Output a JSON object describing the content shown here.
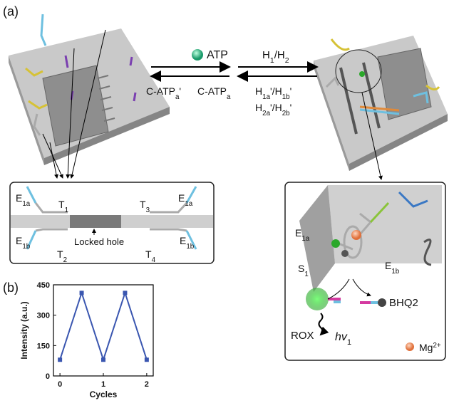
{
  "panel_a": {
    "label": "(a)",
    "labels": [
      {
        "parts": [
          "ATP"
        ]
      },
      {
        "parts": [
          "C-ATP",
          {
            "sub": "a"
          },
          "'"
        ]
      },
      {
        "parts": [
          "C-ATP",
          {
            "sub": "a"
          }
        ]
      },
      {
        "parts": [
          "H",
          {
            "sub": "1"
          },
          "/H",
          {
            "sub": "2"
          }
        ]
      },
      {
        "parts": [
          "H",
          {
            "sub": "1a"
          },
          "'/H",
          {
            "sub": "1b"
          },
          "'"
        ]
      },
      {
        "parts": [
          "H",
          {
            "sub": "2a"
          },
          "'/H",
          {
            "sub": "2b"
          },
          "'"
        ]
      },
      {
        "parts": [
          "E",
          {
            "sub": "1a"
          }
        ]
      },
      {
        "parts": [
          "T",
          {
            "sub": "1"
          }
        ]
      },
      {
        "parts": [
          "T",
          {
            "sub": "3"
          }
        ]
      },
      {
        "parts": [
          "E",
          {
            "sub": "1a"
          }
        ]
      },
      {
        "parts": [
          "E",
          {
            "sub": "1b"
          }
        ]
      },
      {
        "parts": [
          "T",
          {
            "sub": "2"
          }
        ]
      },
      {
        "parts": [
          "Locked hole"
        ]
      },
      {
        "parts": [
          "T",
          {
            "sub": "4"
          }
        ]
      },
      {
        "parts": [
          "E",
          {
            "sub": "1b"
          }
        ]
      },
      {
        "parts": [
          "E",
          {
            "sub": "1a"
          }
        ]
      },
      {
        "parts": [
          "E",
          {
            "sub": "1b"
          }
        ]
      },
      {
        "parts": [
          "S",
          {
            "sub": "1"
          }
        ]
      },
      {
        "parts": [
          "BHQ2"
        ]
      },
      {
        "parts": [
          "ROX"
        ]
      },
      {
        "parts": [
          "hv",
          {
            "sub": "1"
          }
        ]
      },
      {
        "parts": [
          "Mg",
          {
            "sup": "2+"
          }
        ]
      }
    ]
  },
  "panel_b": {
    "label": "(b)"
  },
  "chart_data": {
    "type": "line",
    "x_label": "Cycles",
    "y_label": "Intensity (a.u.)",
    "x": [
      0,
      0.5,
      1,
      1.5,
      2
    ],
    "values": [
      80,
      410,
      80,
      410,
      80
    ],
    "color": "#3a56b0",
    "xlim": [
      -0.15,
      2.15
    ],
    "ylim": [
      0,
      450
    ],
    "xticks": [
      0,
      1,
      2
    ],
    "yticks": [
      0,
      150,
      300,
      450
    ]
  }
}
